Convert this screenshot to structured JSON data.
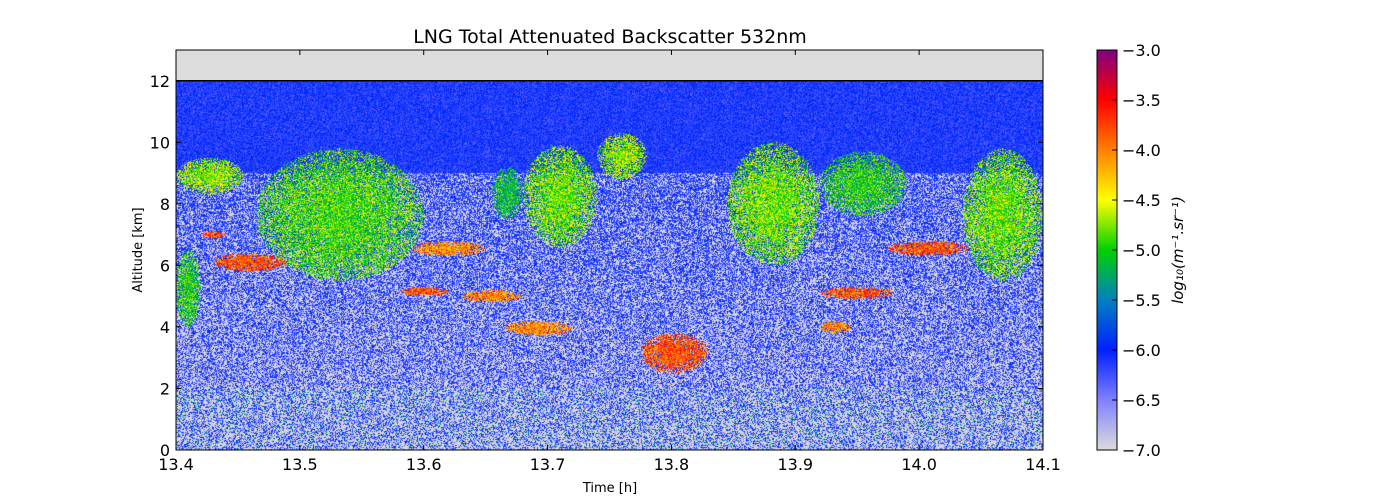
{
  "chart_data": {
    "type": "heatmap",
    "title": "LNG Total Attenuated Backscatter 532nm",
    "xlabel": "Time [h]",
    "ylabel": "Altitude [km]",
    "xlim": [
      13.4,
      14.1
    ],
    "ylim": [
      0,
      13
    ],
    "x_ticks": [
      13.4,
      13.5,
      13.6,
      13.7,
      13.8,
      13.9,
      14.0,
      14.1
    ],
    "x_tick_labels": [
      "13.4",
      "13.5",
      "13.6",
      "13.7",
      "13.8",
      "13.9",
      "14.0",
      "14.1"
    ],
    "y_ticks": [
      0,
      2,
      4,
      6,
      8,
      10,
      12
    ],
    "y_tick_labels": [
      "0",
      "2",
      "4",
      "6",
      "8",
      "10",
      "12"
    ],
    "grid": false,
    "colorbar": {
      "label": "log₁₀(m⁻¹.sr⁻¹)",
      "range": [
        -7.0,
        -3.0
      ],
      "ticks": [
        -7.0,
        -6.5,
        -6.0,
        -5.5,
        -5.0,
        -4.5,
        -4.0,
        -3.5,
        -3.0
      ],
      "tick_labels": [
        "−7.0",
        "−6.5",
        "−6.0",
        "−5.5",
        "−5.0",
        "−4.5",
        "−4.0",
        "−3.5",
        "−3.0"
      ],
      "colors": [
        "#dcdcdc",
        "#8080ff",
        "#0020ff",
        "#0080c0",
        "#00d000",
        "#ffff00",
        "#ff8000",
        "#ff0000",
        "#800080"
      ]
    },
    "aircraft_altitude_km": 12.0,
    "no_data_color": "#dcdcdc",
    "features": [
      {
        "kind": "cirrus",
        "x_range": [
          13.4,
          13.455
        ],
        "alt_range_km": [
          8.3,
          9.5
        ],
        "value": -4.7
      },
      {
        "kind": "cloud_layer",
        "x_range": [
          13.4,
          13.42
        ],
        "alt_range_km": [
          4.0,
          6.5
        ],
        "value": -5.0
      },
      {
        "kind": "cloud_layer",
        "x_range": [
          13.42,
          13.44
        ],
        "alt_range_km": [
          6.9,
          7.1
        ],
        "value": -3.8
      },
      {
        "kind": "cloud_layer",
        "x_range": [
          13.43,
          13.49
        ],
        "alt_range_km": [
          5.8,
          6.4
        ],
        "value": -3.8
      },
      {
        "kind": "cirrus",
        "x_range": [
          13.465,
          13.6
        ],
        "alt_range_km": [
          5.5,
          9.8
        ],
        "value": -4.9
      },
      {
        "kind": "cloud_layer",
        "x_range": [
          13.58,
          13.62
        ],
        "alt_range_km": [
          5.0,
          5.3
        ],
        "value": -3.8
      },
      {
        "kind": "cloud_layer",
        "x_range": [
          13.59,
          13.65
        ],
        "alt_range_km": [
          6.3,
          6.8
        ],
        "value": -4.0
      },
      {
        "kind": "cloud_layer",
        "x_range": [
          13.63,
          13.68
        ],
        "alt_range_km": [
          4.8,
          5.2
        ],
        "value": -4.0
      },
      {
        "kind": "cloud_layer",
        "x_range": [
          13.665,
          13.72
        ],
        "alt_range_km": [
          3.7,
          4.2
        ],
        "value": -4.0
      },
      {
        "kind": "cirrus",
        "x_range": [
          13.655,
          13.68
        ],
        "alt_range_km": [
          7.5,
          9.2
        ],
        "value": -5.1
      },
      {
        "kind": "cirrus",
        "x_range": [
          13.68,
          13.74
        ],
        "alt_range_km": [
          6.6,
          9.9
        ],
        "value": -4.8
      },
      {
        "kind": "cirrus",
        "x_range": [
          13.74,
          13.78
        ],
        "alt_range_km": [
          8.8,
          10.3
        ],
        "value": -4.7
      },
      {
        "kind": "cloud_layer",
        "x_range": [
          13.775,
          13.83
        ],
        "alt_range_km": [
          2.5,
          3.8
        ],
        "value": -3.8
      },
      {
        "kind": "cirrus",
        "x_range": [
          13.845,
          13.92
        ],
        "alt_range_km": [
          6.0,
          10.0
        ],
        "value": -4.8
      },
      {
        "kind": "cloud_layer",
        "x_range": [
          13.92,
          13.945
        ],
        "alt_range_km": [
          3.8,
          4.2
        ],
        "value": -4.0
      },
      {
        "kind": "cloud_layer",
        "x_range": [
          13.92,
          13.98
        ],
        "alt_range_km": [
          4.9,
          5.3
        ],
        "value": -3.8
      },
      {
        "kind": "cirrus",
        "x_range": [
          13.92,
          13.99
        ],
        "alt_range_km": [
          7.6,
          9.7
        ],
        "value": -5.0
      },
      {
        "kind": "cloud_layer",
        "x_range": [
          13.975,
          14.04
        ],
        "alt_range_km": [
          6.3,
          6.8
        ],
        "value": -3.8
      },
      {
        "kind": "cirrus",
        "x_range": [
          14.035,
          14.1
        ],
        "alt_range_km": [
          5.5,
          9.8
        ],
        "value": -4.8
      }
    ]
  }
}
